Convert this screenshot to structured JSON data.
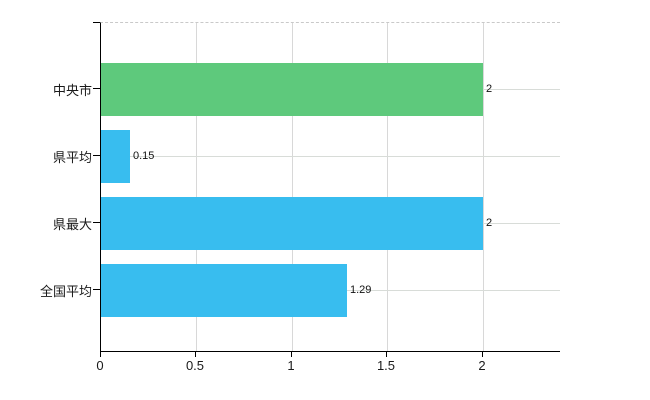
{
  "chart_data": {
    "type": "bar",
    "orientation": "horizontal",
    "title": "",
    "categories": [
      "中央市",
      "県平均",
      "県最大",
      "全国平均"
    ],
    "values": [
      2,
      0.15,
      2,
      1.29
    ],
    "value_labels": [
      "2",
      "0.15",
      "2",
      "1.29"
    ],
    "bar_colors": [
      "#5ec97c",
      "#38bdef",
      "#38bdef",
      "#38bdef"
    ],
    "x_ticks": [
      0,
      0.5,
      1,
      1.5,
      2
    ],
    "x_tick_labels": [
      "0",
      "0.5",
      "1",
      "1.5",
      "2"
    ],
    "xlim": [
      0,
      2.41
    ],
    "grid": true,
    "legend_position": "none"
  },
  "colors": {
    "bar_green": "#5ec97c",
    "bar_blue": "#38bdef",
    "gridline": "#d8d8d8",
    "axis": "#000000",
    "text": "#1a1a1a",
    "background": "#ffffff"
  }
}
